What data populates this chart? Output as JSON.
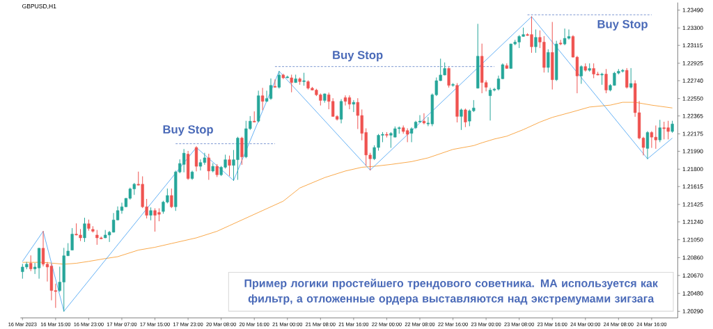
{
  "chart_data": {
    "type": "candlestick",
    "title": "GBPUSD,H1",
    "categories": [
      "16 Mar 2023",
      null,
      null,
      null,
      null,
      null,
      null,
      null,
      "16 Mar 15:00",
      null,
      null,
      null,
      null,
      null,
      null,
      null,
      "16 Mar 23:00",
      null,
      null,
      null,
      null,
      null,
      null,
      null,
      "17 Mar 07:00",
      null,
      null,
      null,
      null,
      null,
      null,
      null,
      "17 Mar 15:00",
      null,
      null,
      null,
      null,
      null,
      null,
      null,
      "17 Mar 23:00",
      null,
      null,
      null,
      null,
      null,
      null,
      null,
      "20 Mar 08:00",
      null,
      null,
      null,
      null,
      null,
      null,
      null,
      "20 Mar 16:00",
      null,
      null,
      null,
      null,
      null,
      null,
      null,
      "21 Mar 00:00",
      null,
      null,
      null,
      null,
      null,
      null,
      null,
      "21 Mar 08:00",
      null,
      null,
      null,
      null,
      null,
      null,
      null,
      "21 Mar 16:00",
      null,
      null,
      null,
      null,
      null,
      null,
      null,
      "22 Mar 00:00",
      null,
      null,
      null,
      null,
      null,
      null,
      null,
      "22 Mar 08:00",
      null,
      null,
      null,
      null,
      null,
      null,
      null,
      "22 Mar 16:00",
      null,
      null,
      null,
      null,
      null,
      null,
      null,
      "23 Mar 00:00",
      null,
      null,
      null,
      null,
      null,
      null,
      null,
      "23 Mar 08:00",
      null,
      null,
      null,
      null,
      null,
      null,
      null,
      "23 Mar 16:00",
      null,
      null,
      null,
      null,
      null,
      null,
      null,
      "24 Mar 00:00",
      null,
      null,
      null,
      null,
      null,
      null,
      null,
      "24 Mar 08:00",
      null,
      null,
      null,
      null,
      null,
      null,
      null,
      "24 Mar 16:00",
      null,
      null,
      null,
      null,
      null
    ],
    "ohlc": [
      [
        1.2071,
        1.2079,
        1.2064,
        1.2076
      ],
      [
        1.2076,
        1.2081,
        1.2074,
        1.2079
      ],
      [
        1.208,
        1.2088,
        1.2072,
        1.2074
      ],
      [
        1.2074,
        1.208,
        1.2069,
        1.2076
      ],
      [
        1.2075,
        1.2096,
        1.2064,
        1.2096
      ],
      [
        1.2096,
        1.2114,
        1.2077,
        1.2079
      ],
      [
        1.2079,
        1.2081,
        1.2061,
        1.2076
      ],
      [
        1.2077,
        1.2079,
        1.2041,
        1.2051
      ],
      [
        1.2051,
        1.2058,
        1.2033,
        1.205
      ],
      [
        1.2051,
        1.2076,
        1.205,
        1.206
      ],
      [
        1.206,
        1.2096,
        1.2029,
        1.2088
      ],
      [
        1.2088,
        1.2101,
        1.2088,
        1.2093
      ],
      [
        1.2094,
        1.2117,
        1.2094,
        1.2111
      ],
      [
        1.2111,
        1.2122,
        1.211,
        1.211
      ],
      [
        1.211,
        1.2116,
        1.2104,
        1.2107
      ],
      [
        1.2107,
        1.2128,
        1.2103,
        1.2122
      ],
      [
        1.2122,
        1.2126,
        1.2115,
        1.2117
      ],
      [
        1.2116,
        1.2119,
        1.2113,
        1.2114
      ],
      [
        1.211,
        1.2115,
        1.21,
        1.2107
      ],
      [
        1.2107,
        1.2108,
        1.2106,
        1.2106
      ],
      [
        1.2107,
        1.2115,
        1.2107,
        1.211
      ],
      [
        1.211,
        1.2114,
        1.2103,
        1.2113
      ],
      [
        1.2113,
        1.2133,
        1.2113,
        1.2126
      ],
      [
        1.2126,
        1.214,
        1.2126,
        1.2136
      ],
      [
        1.2136,
        1.2144,
        1.2133,
        1.214
      ],
      [
        1.214,
        1.2149,
        1.214,
        1.2149
      ],
      [
        1.2149,
        1.216,
        1.2148,
        1.2159
      ],
      [
        1.2159,
        1.2165,
        1.2153,
        1.2164
      ],
      [
        1.2164,
        1.2177,
        1.2163,
        1.2163
      ],
      [
        1.2164,
        1.2172,
        1.2139,
        1.214
      ],
      [
        1.214,
        1.2148,
        1.2128,
        1.2131
      ],
      [
        1.2131,
        1.2139,
        1.2126,
        1.2136
      ],
      [
        1.2136,
        1.2138,
        1.2114,
        1.2131
      ],
      [
        1.2134,
        1.2138,
        1.2125,
        1.2132
      ],
      [
        1.2135,
        1.2146,
        1.2133,
        1.2145
      ],
      [
        1.2145,
        1.2159,
        1.2144,
        1.2152
      ],
      [
        1.2152,
        1.2159,
        1.2139,
        1.214
      ],
      [
        1.214,
        1.2178,
        1.2136,
        1.2177
      ],
      [
        1.2177,
        1.219,
        1.2176,
        1.2186
      ],
      [
        1.2185,
        1.2201,
        1.2177,
        1.2197
      ],
      [
        1.2196,
        1.2199,
        1.2169,
        1.217
      ],
      [
        1.217,
        1.2178,
        1.2169,
        1.2177
      ],
      [
        1.2203,
        1.2204,
        1.2178,
        1.2183
      ],
      [
        1.2183,
        1.219,
        1.2179,
        1.2187
      ],
      [
        1.2187,
        1.2197,
        1.2185,
        1.2192
      ],
      [
        1.2192,
        1.2196,
        1.2169,
        1.2178
      ],
      [
        1.2178,
        1.2186,
        1.2177,
        1.2183
      ],
      [
        1.2183,
        1.2185,
        1.2172,
        1.2174
      ],
      [
        1.2174,
        1.2183,
        1.2173,
        1.2182
      ],
      [
        1.2182,
        1.2195,
        1.2181,
        1.219
      ],
      [
        1.219,
        1.2194,
        1.2173,
        1.2184
      ],
      [
        1.2184,
        1.22,
        1.2168,
        1.219
      ],
      [
        1.219,
        1.2214,
        1.2169,
        1.2213
      ],
      [
        1.2213,
        1.2214,
        1.2185,
        1.2193
      ],
      [
        1.2193,
        1.2231,
        1.2192,
        1.2223
      ],
      [
        1.2223,
        1.2236,
        1.2222,
        1.2231
      ],
      [
        1.2231,
        1.2241,
        1.223,
        1.223
      ],
      [
        1.2231,
        1.2263,
        1.223,
        1.2258
      ],
      [
        1.2258,
        1.2266,
        1.2243,
        1.2252
      ],
      [
        1.2252,
        1.2263,
        1.2252,
        1.2255
      ],
      [
        1.2255,
        1.2276,
        1.2254,
        1.2269
      ],
      [
        1.2268,
        1.2275,
        1.2267,
        1.2267
      ],
      [
        1.2267,
        1.2284,
        1.2266,
        1.228
      ],
      [
        1.228,
        1.2281,
        1.2276,
        1.2277
      ],
      [
        1.2277,
        1.2279,
        1.2277,
        1.2278
      ],
      [
        1.2277,
        1.228,
        1.2262,
        1.2272
      ],
      [
        1.2272,
        1.228,
        1.2272,
        1.2276
      ],
      [
        1.2276,
        1.2277,
        1.227,
        1.2273
      ],
      [
        1.2273,
        1.2282,
        1.2269,
        1.2274
      ],
      [
        1.2273,
        1.2274,
        1.2265,
        1.2266
      ],
      [
        1.2266,
        1.2267,
        1.2264,
        1.2264
      ],
      [
        1.2264,
        1.2265,
        1.2258,
        1.2259
      ],
      [
        1.2259,
        1.226,
        1.2248,
        1.2253
      ],
      [
        1.2253,
        1.226,
        1.2251,
        1.226
      ],
      [
        1.2259,
        1.2261,
        1.2244,
        1.2252
      ],
      [
        1.2252,
        1.2255,
        1.2236,
        1.2236
      ],
      [
        1.2236,
        1.2237,
        1.2232,
        1.2233
      ],
      [
        1.2233,
        1.2254,
        1.2229,
        1.2252
      ],
      [
        1.2256,
        1.2258,
        1.2248,
        1.2252
      ],
      [
        1.2256,
        1.2258,
        1.2244,
        1.2249
      ],
      [
        1.2249,
        1.2253,
        1.2241,
        1.2251
      ],
      [
        1.2251,
        1.2255,
        1.2223,
        1.2237
      ],
      [
        1.2237,
        1.2243,
        1.2211,
        1.2218
      ],
      [
        1.2219,
        1.2223,
        1.2184,
        1.2195
      ],
      [
        1.2195,
        1.2197,
        1.2179,
        1.2191
      ],
      [
        1.2191,
        1.2205,
        1.219,
        1.2203
      ],
      [
        1.2203,
        1.2217,
        1.22,
        1.2216
      ],
      [
        1.2216,
        1.2219,
        1.2209,
        1.2217
      ],
      [
        1.2217,
        1.2219,
        1.2214,
        1.2216
      ],
      [
        1.2216,
        1.2219,
        1.2203,
        1.2218
      ],
      [
        1.2214,
        1.2225,
        1.2214,
        1.2223
      ],
      [
        1.2223,
        1.2225,
        1.2218,
        1.2224
      ],
      [
        1.2224,
        1.2226,
        1.2218,
        1.222
      ],
      [
        1.2221,
        1.2223,
        1.2209,
        1.2217
      ],
      [
        1.2218,
        1.2224,
        1.2209,
        1.2223
      ],
      [
        1.2224,
        1.2231,
        1.2223,
        1.223
      ],
      [
        1.223,
        1.2237,
        1.223,
        1.2231
      ],
      [
        1.2231,
        1.2239,
        1.2228,
        1.2229
      ],
      [
        1.2228,
        1.2235,
        1.2226,
        1.2229
      ],
      [
        1.2228,
        1.226,
        1.2226,
        1.2259
      ],
      [
        1.2259,
        1.2277,
        1.2258,
        1.2274
      ],
      [
        1.2274,
        1.2297,
        1.2274,
        1.228
      ],
      [
        1.228,
        1.2293,
        1.228,
        1.2287
      ],
      [
        1.2287,
        1.2288,
        1.2267,
        1.2269
      ],
      [
        1.2269,
        1.2271,
        1.2268,
        1.227
      ],
      [
        1.2269,
        1.2271,
        1.223,
        1.2236
      ],
      [
        1.2236,
        1.2244,
        1.2222,
        1.2243
      ],
      [
        1.2243,
        1.2244,
        1.2225,
        1.223
      ],
      [
        1.2231,
        1.2243,
        1.2226,
        1.2242
      ],
      [
        1.2242,
        1.2253,
        1.2241,
        1.2245
      ],
      [
        1.2266,
        1.2334,
        1.2266,
        1.23
      ],
      [
        1.23,
        1.2313,
        1.2261,
        1.2272
      ],
      [
        1.2272,
        1.2274,
        1.2263,
        1.2267
      ],
      [
        1.2258,
        1.2266,
        1.2232,
        1.2264
      ],
      [
        1.2264,
        1.2266,
        1.2263,
        1.2265
      ],
      [
        1.2265,
        1.2279,
        1.2264,
        1.2276
      ],
      [
        1.2276,
        1.2292,
        1.2276,
        1.2291
      ],
      [
        1.229,
        1.2292,
        1.2287,
        1.2287
      ],
      [
        1.2287,
        1.2313,
        1.2287,
        1.2313
      ],
      [
        1.2313,
        1.2317,
        1.2312,
        1.2315
      ],
      [
        1.2315,
        1.2322,
        1.2309,
        1.2321
      ],
      [
        1.2321,
        1.233,
        1.2321,
        1.2323
      ],
      [
        1.2323,
        1.2324,
        1.2322,
        1.2322
      ],
      [
        1.2323,
        1.2342,
        1.2304,
        1.231
      ],
      [
        1.231,
        1.2328,
        1.2304,
        1.232
      ],
      [
        1.232,
        1.2327,
        1.2309,
        1.2315
      ],
      [
        1.2315,
        1.2321,
        1.2283,
        1.2288
      ],
      [
        1.2288,
        1.2307,
        1.2283,
        1.2304
      ],
      [
        1.2304,
        1.2336,
        1.2265,
        1.2275
      ],
      [
        1.2275,
        1.2316,
        1.2274,
        1.2313
      ],
      [
        1.2314,
        1.2317,
        1.2312,
        1.2313
      ],
      [
        1.2313,
        1.2329,
        1.2312,
        1.2319
      ],
      [
        1.2319,
        1.2328,
        1.2318,
        1.2321
      ],
      [
        1.2321,
        1.2322,
        1.2299,
        1.2299
      ],
      [
        1.2299,
        1.23,
        1.2261,
        1.2279
      ],
      [
        1.2279,
        1.229,
        1.2271,
        1.2289
      ],
      [
        1.2289,
        1.2292,
        1.2284,
        1.2285
      ],
      [
        1.2285,
        1.2292,
        1.2284,
        1.2287
      ],
      [
        1.2287,
        1.2292,
        1.2277,
        1.2281
      ],
      [
        1.2281,
        1.2283,
        1.228,
        1.228
      ],
      [
        1.228,
        1.2282,
        1.227,
        1.2281
      ],
      [
        1.2281,
        1.2286,
        1.2261,
        1.2264
      ],
      [
        1.2264,
        1.227,
        1.2263,
        1.2269
      ],
      [
        1.2269,
        1.2283,
        1.2269,
        1.2282
      ],
      [
        1.2282,
        1.2286,
        1.2281,
        1.2284
      ],
      [
        1.2284,
        1.2286,
        1.2283,
        1.2285
      ],
      [
        1.2285,
        1.2287,
        1.2266,
        1.2267
      ],
      [
        1.2267,
        1.2287,
        1.2266,
        1.2271
      ],
      [
        1.2271,
        1.2274,
        1.2236,
        1.224
      ],
      [
        1.224,
        1.2252,
        1.2212,
        1.2213
      ],
      [
        1.2213,
        1.2214,
        1.2195,
        1.2203
      ],
      [
        1.2202,
        1.222,
        1.2191,
        1.2219
      ],
      [
        1.2219,
        1.222,
        1.2203,
        1.2214
      ],
      [
        1.2214,
        1.2226,
        1.2202,
        1.2211
      ],
      [
        1.2211,
        1.2232,
        1.2209,
        1.2224
      ],
      [
        1.2224,
        1.223,
        1.2212,
        1.2223
      ],
      [
        1.2224,
        1.2231,
        1.2212,
        1.222
      ],
      [
        1.222,
        1.2231,
        1.2219,
        1.2228
      ]
    ],
    "colors": [
      "#26a69a",
      "#26a69a",
      "#ef5350",
      "#26a69a",
      "#26a69a",
      "#ef5350",
      "#ef5350",
      "#ef5350",
      "#ef5350",
      "#26a69a",
      "#26a69a",
      "#26a69a",
      "#26a69a",
      "#ef5350",
      "#ef5350",
      "#26a69a",
      "#ef5350",
      "#ef5350",
      "#ef5350",
      "#ef5350",
      "#26a69a",
      "#26a69a",
      "#26a69a",
      "#26a69a",
      "#26a69a",
      "#26a69a",
      "#26a69a",
      "#26a69a",
      "#ef5350",
      "#ef5350",
      "#ef5350",
      "#26a69a",
      "#ef5350",
      "#ef5350",
      "#26a69a",
      "#26a69a",
      "#ef5350",
      "#26a69a",
      "#26a69a",
      "#26a69a",
      "#ef5350",
      "#26a69a",
      "#ef5350",
      "#26a69a",
      "#26a69a",
      "#ef5350",
      "#26a69a",
      "#ef5350",
      "#26a69a",
      "#26a69a",
      "#ef5350",
      "#26a69a",
      "#26a69a",
      "#ef5350",
      "#26a69a",
      "#26a69a",
      "#ef5350",
      "#26a69a",
      "#ef5350",
      "#26a69a",
      "#26a69a",
      "#ef5350",
      "#26a69a",
      "#ef5350",
      "#26a69a",
      "#ef5350",
      "#26a69a",
      "#ef5350",
      "#26a69a",
      "#ef5350",
      "#ef5350",
      "#ef5350",
      "#ef5350",
      "#26a69a",
      "#ef5350",
      "#ef5350",
      "#ef5350",
      "#26a69a",
      "#ef5350",
      "#ef5350",
      "#26a69a",
      "#ef5350",
      "#ef5350",
      "#ef5350",
      "#ef5350",
      "#26a69a",
      "#26a69a",
      "#26a69a",
      "#ef5350",
      "#26a69a",
      "#26a69a",
      "#26a69a",
      "#ef5350",
      "#ef5350",
      "#26a69a",
      "#26a69a",
      "#26a69a",
      "#ef5350",
      "#26a69a",
      "#26a69a",
      "#26a69a",
      "#26a69a",
      "#26a69a",
      "#ef5350",
      "#26a69a",
      "#ef5350",
      "#26a69a",
      "#ef5350",
      "#26a69a",
      "#26a69a",
      "#26a69a",
      "#ef5350",
      "#ef5350",
      "#26a69a",
      "#26a69a",
      "#26a69a",
      "#26a69a",
      "#ef5350",
      "#26a69a",
      "#26a69a",
      "#26a69a",
      "#26a69a",
      "#ef5350",
      "#ef5350",
      "#26a69a",
      "#ef5350",
      "#ef5350",
      "#26a69a",
      "#ef5350",
      "#26a69a",
      "#ef5350",
      "#26a69a",
      "#26a69a",
      "#ef5350",
      "#ef5350",
      "#26a69a",
      "#ef5350",
      "#26a69a",
      "#ef5350",
      "#ef5350",
      "#26a69a",
      "#ef5350",
      "#26a69a",
      "#26a69a",
      "#26a69a",
      "#26a69a",
      "#ef5350",
      "#26a69a",
      "#ef5350",
      "#ef5350",
      "#ef5350",
      "#26a69a",
      "#ef5350",
      "#ef5350",
      "#26a69a",
      "#ef5350",
      "#ef5350",
      "#26a69a"
    ],
    "series": [
      {
        "type": "line",
        "color": "#f7931e",
        "values": [
          1.2081,
          null,
          null,
          null,
          null,
          1.2081,
          null,
          null,
          null,
          null,
          1.2079,
          null,
          null,
          1.208,
          null,
          null,
          1.2082,
          null,
          null,
          null,
          1.2085,
          null,
          null,
          1.2087,
          null,
          null,
          null,
          null,
          1.2094,
          null,
          null,
          null,
          1.2097,
          null,
          null,
          null,
          1.2101,
          null,
          null,
          null,
          null,
          null,
          1.2107,
          null,
          null,
          null,
          null,
          1.2114,
          null,
          null,
          1.212,
          null,
          null,
          null,
          null,
          null,
          null,
          null,
          1.2136,
          null,
          null,
          null,
          null,
          1.2146,
          null,
          null,
          null,
          1.216,
          null,
          null,
          null,
          null,
          null,
          1.2171,
          null,
          null,
          null,
          null,
          1.2178,
          null,
          null,
          null,
          1.2182,
          null,
          null,
          1.2183,
          null,
          null,
          null,
          1.2185,
          null,
          null,
          null,
          null,
          1.2188,
          null,
          null,
          null,
          1.2192,
          null,
          null,
          null,
          null,
          null,
          1.2201,
          null,
          null,
          null,
          null,
          1.2205,
          null,
          1.2208,
          null,
          null,
          1.2212,
          null,
          null,
          1.2215,
          null,
          null,
          null,
          1.2222,
          null,
          null,
          null,
          1.223,
          null,
          null,
          1.2235,
          null,
          null,
          null,
          null,
          1.2241,
          null,
          null,
          null,
          1.2246,
          null,
          null,
          null,
          null,
          1.2248,
          null,
          null,
          1.2251,
          null,
          null,
          1.2251,
          null,
          null,
          null,
          1.2248,
          null,
          null,
          null,
          null,
          1.2245
        ]
      },
      {
        "type": "line",
        "color": "#3d9df3",
        "values": [
          1.2082,
          null,
          null,
          null,
          null,
          1.2114,
          null,
          null,
          null,
          null,
          1.2029,
          null,
          null,
          null,
          null,
          null,
          null,
          null,
          null,
          null,
          null,
          null,
          null,
          null,
          null,
          null,
          null,
          null,
          null,
          null,
          null,
          null,
          null,
          null,
          null,
          null,
          null,
          null,
          null,
          null,
          null,
          null,
          1.2203,
          null,
          null,
          null,
          null,
          null,
          null,
          null,
          null,
          1.2168,
          null,
          null,
          null,
          null,
          null,
          null,
          null,
          null,
          null,
          null,
          1.2284,
          null,
          null,
          null,
          null,
          null,
          null,
          null,
          null,
          null,
          null,
          null,
          null,
          null,
          null,
          null,
          null,
          null,
          null,
          null,
          null,
          null,
          1.2179,
          null,
          null,
          null,
          null,
          null,
          null,
          null,
          null,
          null,
          null,
          null,
          null,
          null,
          null,
          null,
          null,
          null,
          null,
          null,
          null,
          null,
          null,
          null,
          null,
          null,
          null,
          null,
          null,
          null,
          null,
          null,
          null,
          null,
          null,
          null,
          null,
          null,
          null,
          1.2342,
          null,
          null,
          null,
          null,
          null,
          null,
          null,
          null,
          null,
          null,
          null,
          null,
          null,
          null,
          null,
          null,
          null,
          null,
          null,
          null,
          null,
          null,
          null,
          null,
          null,
          null,
          null,
          1.2191,
          null,
          null,
          null,
          null,
          null,
          1.2213
        ]
      },
      {
        "type": "line",
        "color": "#4a6fc0",
        "line_style": "dashed",
        "values": [
          null,
          null,
          null,
          null,
          null,
          null,
          null,
          null,
          null,
          null,
          null,
          null,
          null,
          null,
          null,
          null,
          null,
          null,
          null,
          null,
          null,
          null,
          null,
          null,
          null,
          null,
          null,
          null,
          null,
          null,
          null,
          null,
          null,
          null,
          null,
          null,
          null,
          1.2207,
          null,
          null,
          null,
          null,
          null,
          null,
          null,
          null,
          null,
          null,
          null,
          null,
          null,
          null,
          null,
          null,
          null,
          null,
          null,
          null,
          null,
          null,
          null,
          1.2207,
          null,
          null,
          null,
          null,
          null,
          null,
          null,
          null,
          null,
          null,
          null,
          null,
          null,
          null,
          null,
          null,
          null,
          null,
          null,
          null,
          null,
          null,
          null,
          null,
          null,
          null,
          null,
          null,
          null,
          null,
          null,
          null,
          null,
          null,
          null,
          null,
          null,
          null,
          null,
          null,
          null,
          null,
          null,
          null,
          null,
          null,
          null,
          null,
          null,
          null,
          null,
          null,
          null,
          null,
          null,
          null,
          null,
          null,
          null,
          null,
          null,
          null,
          null,
          null,
          null,
          null,
          null,
          null,
          null,
          null,
          null,
          null,
          null,
          null,
          null,
          null,
          null,
          null,
          null,
          null,
          null,
          null,
          null,
          null,
          null,
          null,
          null,
          null,
          null,
          null,
          null,
          null,
          null,
          null,
          null,
          null
        ]
      },
      {
        "type": "line",
        "color": "#4a6fc0",
        "line_style": "dashed",
        "values": [
          null,
          null,
          null,
          null,
          null,
          null,
          null,
          null,
          null,
          null,
          null,
          null,
          null,
          null,
          null,
          null,
          null,
          null,
          null,
          null,
          null,
          null,
          null,
          null,
          null,
          null,
          null,
          null,
          null,
          null,
          null,
          null,
          null,
          null,
          null,
          null,
          null,
          null,
          null,
          null,
          null,
          null,
          null,
          null,
          null,
          null,
          null,
          null,
          null,
          null,
          null,
          null,
          null,
          null,
          null,
          null,
          null,
          null,
          null,
          null,
          null,
          1.2289,
          null,
          null,
          null,
          null,
          null,
          null,
          null,
          null,
          null,
          null,
          null,
          null,
          null,
          null,
          null,
          null,
          null,
          null,
          null,
          null,
          null,
          null,
          null,
          null,
          null,
          null,
          null,
          null,
          null,
          null,
          null,
          null,
          null,
          null,
          null,
          null,
          null,
          null,
          null,
          null,
          null,
          null,
          null,
          null,
          null,
          null,
          null,
          null,
          null,
          null,
          null,
          null,
          1.2289,
          null,
          null,
          null,
          null,
          null,
          null,
          null,
          null,
          null,
          null,
          null,
          null,
          null,
          null,
          null,
          null,
          null,
          null,
          null,
          null,
          null,
          null,
          null,
          null,
          null,
          null,
          null,
          null,
          null,
          null,
          null,
          null,
          null,
          null,
          null,
          null,
          null,
          null,
          null,
          null,
          null,
          null,
          null
        ]
      },
      {
        "type": "line",
        "color": "#4a6fc0",
        "line_style": "dashed",
        "values": [
          null,
          null,
          null,
          null,
          null,
          null,
          null,
          null,
          null,
          null,
          null,
          null,
          null,
          null,
          null,
          null,
          null,
          null,
          null,
          null,
          null,
          null,
          null,
          null,
          null,
          null,
          null,
          null,
          null,
          null,
          null,
          null,
          null,
          null,
          null,
          null,
          null,
          null,
          null,
          null,
          null,
          null,
          null,
          null,
          null,
          null,
          null,
          null,
          null,
          null,
          null,
          null,
          null,
          null,
          null,
          null,
          null,
          null,
          null,
          null,
          null,
          null,
          null,
          null,
          null,
          null,
          null,
          null,
          null,
          null,
          null,
          null,
          null,
          null,
          null,
          null,
          null,
          null,
          null,
          null,
          null,
          null,
          null,
          null,
          null,
          null,
          null,
          null,
          null,
          null,
          null,
          null,
          null,
          null,
          null,
          null,
          null,
          null,
          null,
          null,
          null,
          null,
          null,
          null,
          null,
          null,
          null,
          null,
          null,
          null,
          null,
          null,
          null,
          null,
          null,
          null,
          null,
          null,
          null,
          null,
          null,
          null,
          1.2344,
          null,
          null,
          null,
          null,
          null,
          null,
          null,
          null,
          null,
          null,
          null,
          null,
          null,
          null,
          null,
          null,
          null,
          null,
          null,
          null,
          null,
          null,
          null,
          null,
          null,
          null,
          null,
          null,
          null,
          1.2344,
          null,
          null,
          null,
          null,
          null
        ]
      }
    ],
    "annotations": [
      "Buy Stop",
      "Buy Stop",
      "Buy Stop",
      "Пример логики простейшего трендового советника. MA используется как фильтр, а отложенные ордера выставляются над экстремумами зигзага"
    ],
    "ylim": [
      1.2022,
      1.2357
    ],
    "yticks": [
      {
        "value": 1.2349,
        "label": "1.23490"
      },
      {
        "value": 1.233,
        "label": "1.23300"
      },
      {
        "value": 1.23115,
        "label": "1.23115"
      },
      {
        "value": 1.22925,
        "label": "1.22925"
      },
      {
        "value": 1.2274,
        "label": "1.22740"
      },
      {
        "value": 1.2255,
        "label": "1.22550"
      },
      {
        "value": 1.22365,
        "label": "1.22365"
      },
      {
        "value": 1.22175,
        "label": "1.22175"
      },
      {
        "value": 1.2199,
        "label": "1.21990"
      },
      {
        "value": 1.218,
        "label": "1.21800"
      },
      {
        "value": 1.21615,
        "label": "1.21615"
      },
      {
        "value": 1.21425,
        "label": "1.21425"
      },
      {
        "value": 1.2124,
        "label": "1.21240"
      },
      {
        "value": 1.2105,
        "label": "1.21050"
      },
      {
        "value": 1.2086,
        "label": "1.20860"
      },
      {
        "value": 1.2067,
        "label": "1.20670"
      },
      {
        "value": 1.2048,
        "label": "1.20480"
      },
      {
        "value": 1.2029,
        "label": "1.20290"
      }
    ]
  }
}
